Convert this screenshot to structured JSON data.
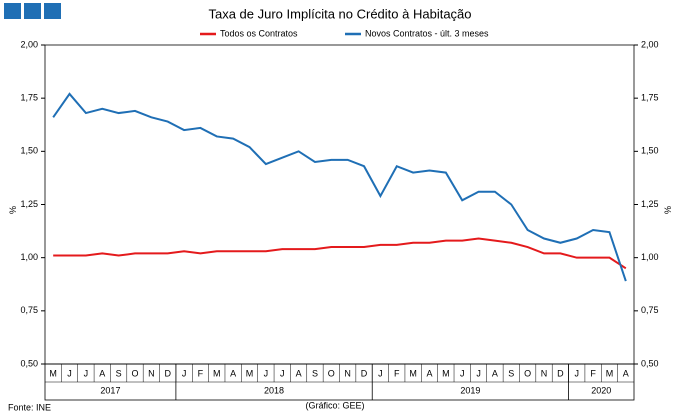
{
  "chart_data": {
    "type": "line",
    "title": "Taxa de Juro Implícita no Crédito à Habitação",
    "categories": [
      "M",
      "J",
      "J",
      "A",
      "S",
      "O",
      "N",
      "D",
      "J",
      "F",
      "M",
      "A",
      "M",
      "J",
      "J",
      "A",
      "S",
      "O",
      "N",
      "D",
      "J",
      "F",
      "M",
      "A",
      "M",
      "J",
      "J",
      "A",
      "S",
      "O",
      "N",
      "D",
      "J",
      "F",
      "M",
      "A"
    ],
    "years": [
      {
        "label": "2017",
        "count": 8
      },
      {
        "label": "2018",
        "count": 12
      },
      {
        "label": "2019",
        "count": 12
      },
      {
        "label": "2020",
        "count": 4
      }
    ],
    "series": [
      {
        "name": "Todos os Contratos",
        "color": "#e41a1c",
        "values": [
          1.01,
          1.01,
          1.01,
          1.02,
          1.01,
          1.02,
          1.02,
          1.02,
          1.03,
          1.02,
          1.03,
          1.03,
          1.03,
          1.03,
          1.04,
          1.04,
          1.04,
          1.05,
          1.05,
          1.05,
          1.06,
          1.06,
          1.07,
          1.07,
          1.08,
          1.08,
          1.09,
          1.08,
          1.07,
          1.05,
          1.02,
          1.02,
          1.0,
          1.0,
          1.0,
          0.95
        ]
      },
      {
        "name": "Novos Contratos - últ. 3 meses",
        "color": "#1f6fb5",
        "values": [
          1.66,
          1.77,
          1.68,
          1.7,
          1.68,
          1.69,
          1.66,
          1.64,
          1.6,
          1.61,
          1.57,
          1.56,
          1.52,
          1.44,
          1.47,
          1.5,
          1.45,
          1.46,
          1.46,
          1.43,
          1.29,
          1.43,
          1.4,
          1.41,
          1.4,
          1.27,
          1.31,
          1.31,
          1.25,
          1.13,
          1.09,
          1.07,
          1.09,
          1.13,
          1.12,
          0.89
        ]
      }
    ],
    "ylim": [
      0.5,
      2.0
    ],
    "yticks": [
      {
        "value": 0.5,
        "label": "0,50"
      },
      {
        "value": 0.75,
        "label": "0,75"
      },
      {
        "value": 1.0,
        "label": "1,00"
      },
      {
        "value": 1.25,
        "label": "1,25"
      },
      {
        "value": 1.5,
        "label": "1,50"
      },
      {
        "value": 1.75,
        "label": "1,75"
      },
      {
        "value": 2.0,
        "label": "2,00"
      }
    ],
    "ylabel": "%",
    "source": "Fonte: INE",
    "credit": "(Gráfico: GEE)"
  }
}
